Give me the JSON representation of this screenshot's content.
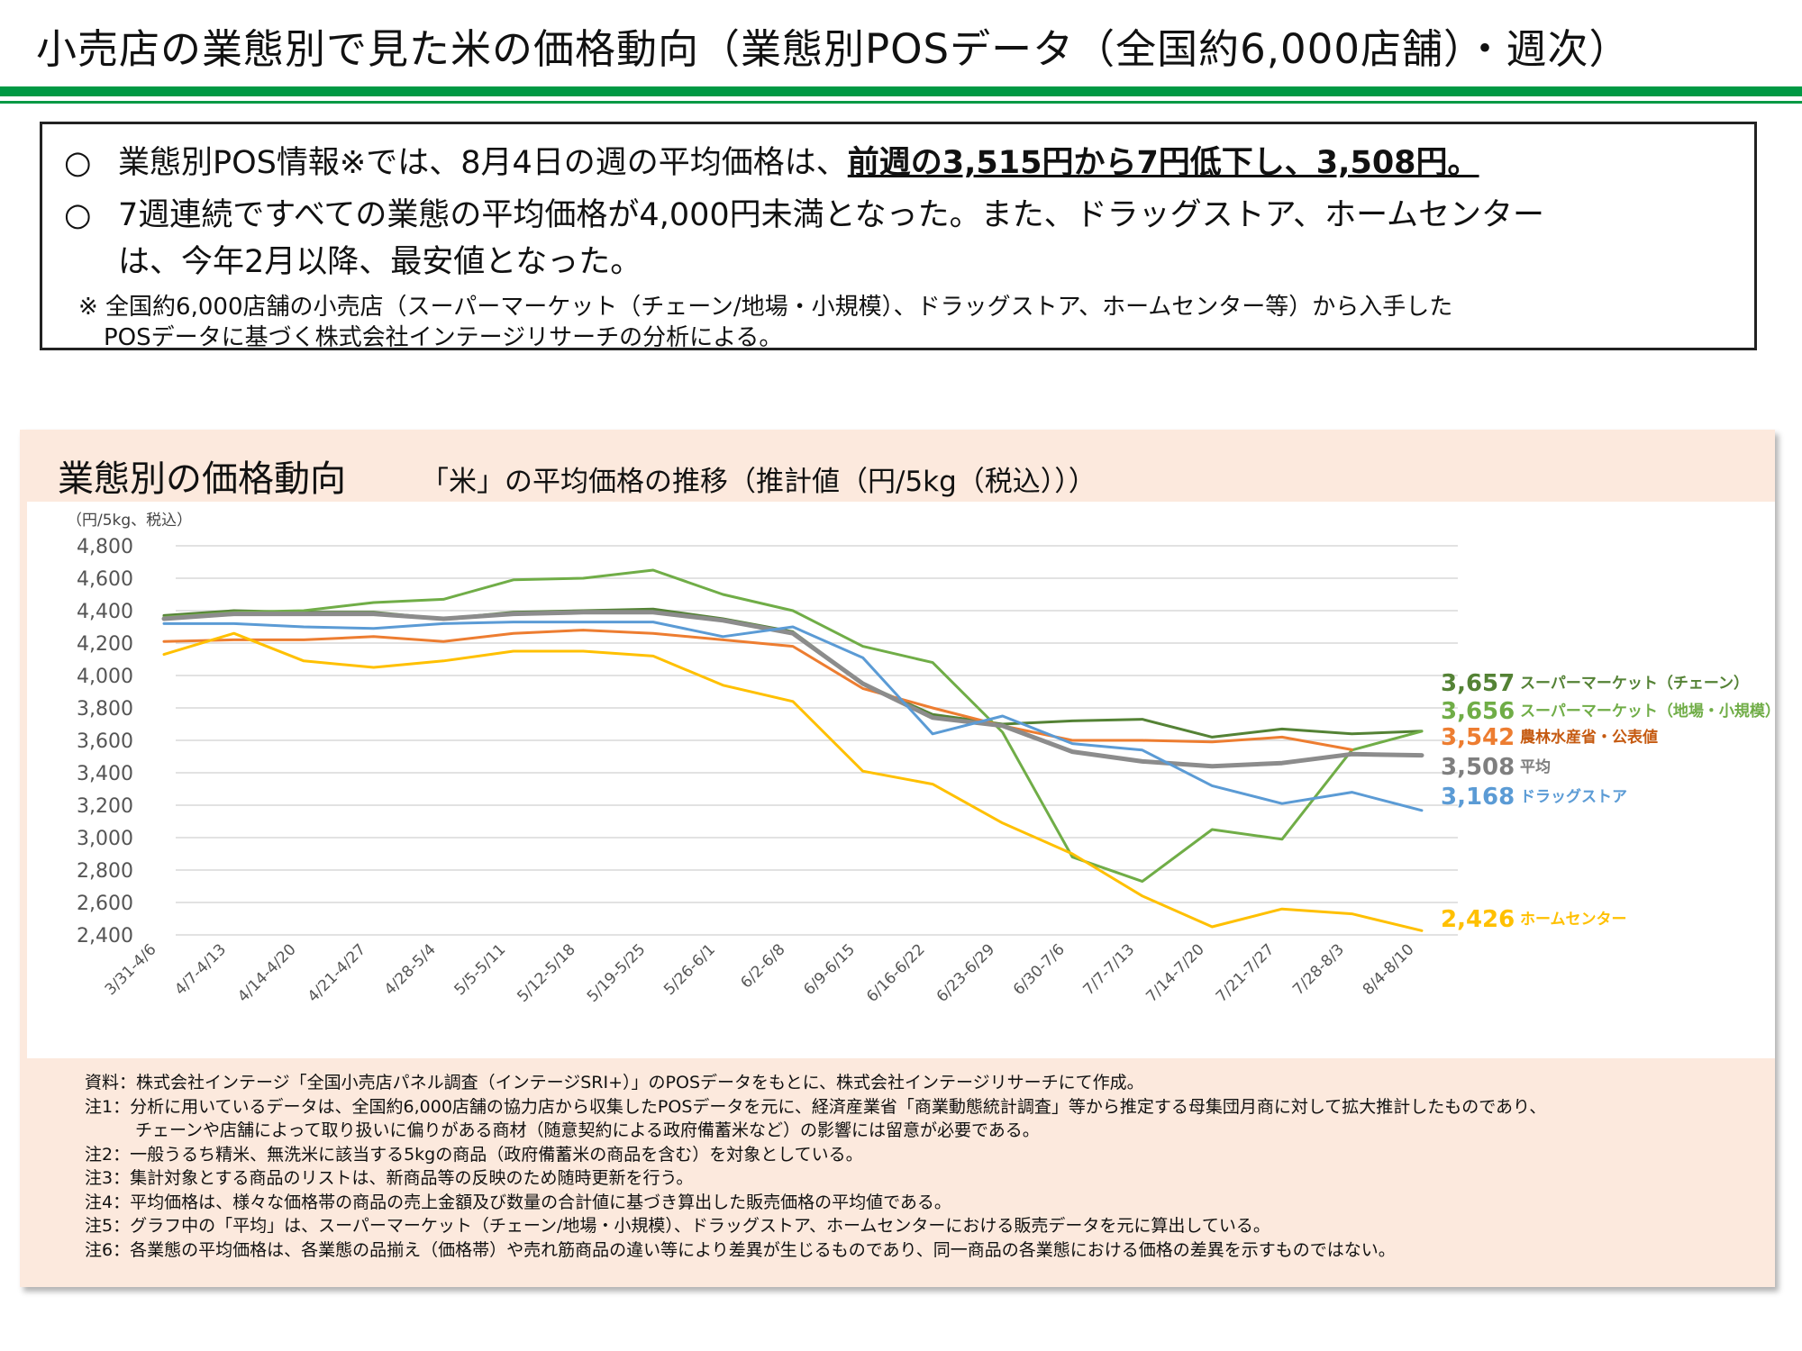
{
  "page": {
    "title": "小売店の業態別で見た米の価格動向（業態別POSデータ（全国約6,000店舗）・週次）"
  },
  "summary": {
    "bullet_mark": "○",
    "line1_prefix": "業態別POS情報※では、8月4日の週の平均価格は、",
    "line1_emphasis": "前週の3,515円から7円低下し、3,508円",
    "line1_suffix": "。",
    "line2": "7週連続ですべての業態の平均価格が4,000円未満となった。また、ドラッグストア、ホームセンター",
    "line2_cont": "は、今年2月以降、最安値となった。",
    "footnote_line1": "※  全国約6,000店舗の小売店（スーパーマーケット（チェーン/地場・小規模）、ドラッグストア、ホームセンター等）から入手した",
    "footnote_line2": "POSデータに基づく株式会社インテージリサーチの分析による。"
  },
  "panel": {
    "title": "業態別の価格動向",
    "subtitle": "「米」の平均価格の推移（推計値（円/5kg（税込）））"
  },
  "notes": [
    "資料：株式会社インテージ「全国小売店パネル調査（インテージSRI+）」のPOSデータをもとに、株式会社インテージリサーチにて作成。",
    "注1：分析に用いているデータは、全国約6,000店舗の協力店から収集したPOSデータを元に、経済産業省「商業動態統計調査」等から推定する母集団月商に対して拡大推計したものであり、",
    "チェーンや店舗によって取り扱いに偏りがある商材（随意契約による政府備蓄米など）の影響には留意が必要である。",
    "注2：一般うるち精米、無洗米に該当する5kgの商品（政府備蓄米の商品を含む）を対象としている。",
    "注3：集計対象とする商品のリストは、新商品等の反映のため随時更新を行う。",
    "注4：平均価格は、様々な価格帯の商品の売上金額及び数量の合計値に基づき算出した販売価格の平均値である。",
    "注5：グラフ中の「平均」は、スーパーマーケット（チェーン/地場・小規模）、ドラッグストア、ホームセンターにおける販売データを元に算出している。",
    "注6：各業態の平均価格は、各業態の品揃え（価格帯）や売れ筋商品の違い等により差異が生じるものであり、同一商品の各業態における価格の差異を示すものではない。"
  ],
  "chart_data": {
    "type": "line",
    "ylabel": "（円/5kg、税込）",
    "ylim": [
      2400,
      4800
    ],
    "yticks": [
      2400,
      2600,
      2800,
      3000,
      3200,
      3400,
      3600,
      3800,
      4000,
      4200,
      4400,
      4600,
      4800
    ],
    "grid": true,
    "categories": [
      "3/31-4/6",
      "4/7-4/13",
      "4/14-4/20",
      "4/21-4/27",
      "4/28-5/4",
      "5/5-5/11",
      "5/12-5/18",
      "5/19-5/25",
      "5/26-6/1",
      "6/2-6/8",
      "6/9-6/15",
      "6/16-6/22",
      "6/23-6/29",
      "6/30-7/6",
      "7/7-7/13",
      "7/14-7/20",
      "7/21-7/27",
      "7/28-8/3",
      "8/4-8/10"
    ],
    "series": [
      {
        "name": "スーパーマーケット（チェーン）",
        "color": "#548235",
        "width": 3,
        "end_label": "3,657",
        "values": [
          4370,
          4400,
          4390,
          4390,
          4350,
          4390,
          4400,
          4410,
          4350,
          4270,
          3950,
          3760,
          3700,
          3720,
          3730,
          3620,
          3670,
          3640,
          3657
        ]
      },
      {
        "name": "スーパーマーケット（地場・小規模）",
        "color": "#70ad47",
        "width": 3,
        "end_label": "3,656",
        "values": [
          4360,
          4390,
          4400,
          4450,
          4470,
          4590,
          4600,
          4650,
          4500,
          4400,
          4180,
          4080,
          3650,
          2880,
          2730,
          3050,
          2990,
          3540,
          3656
        ]
      },
      {
        "name": "農林水産省・公表値",
        "color": "#ed7d31",
        "width": 3,
        "end_label": "3,542",
        "values": [
          4210,
          4220,
          4220,
          4240,
          4210,
          4260,
          4280,
          4260,
          4220,
          4180,
          3920,
          3800,
          3690,
          3600,
          3600,
          3590,
          3620,
          3542,
          null
        ]
      },
      {
        "name": "平均",
        "color": "#8c8c8c",
        "width": 5,
        "end_label": "3,508",
        "values": [
          4350,
          4380,
          4380,
          4380,
          4350,
          4380,
          4390,
          4390,
          4340,
          4260,
          3950,
          3740,
          3690,
          3530,
          3470,
          3440,
          3460,
          3515,
          3508
        ]
      },
      {
        "name": "ドラッグストア",
        "color": "#5b9bd5",
        "width": 3,
        "end_label": "3,168",
        "values": [
          4320,
          4320,
          4300,
          4290,
          4320,
          4330,
          4330,
          4330,
          4240,
          4300,
          4110,
          3640,
          3750,
          3580,
          3540,
          3320,
          3210,
          3280,
          3168
        ]
      },
      {
        "name": "ホームセンター",
        "color": "#ffc000",
        "width": 3,
        "end_label": "2,426",
        "values": [
          4130,
          4260,
          4090,
          4050,
          4090,
          4150,
          4150,
          4120,
          3940,
          3840,
          3410,
          3330,
          3090,
          2900,
          2640,
          2450,
          2560,
          2530,
          2426
        ]
      }
    ]
  }
}
